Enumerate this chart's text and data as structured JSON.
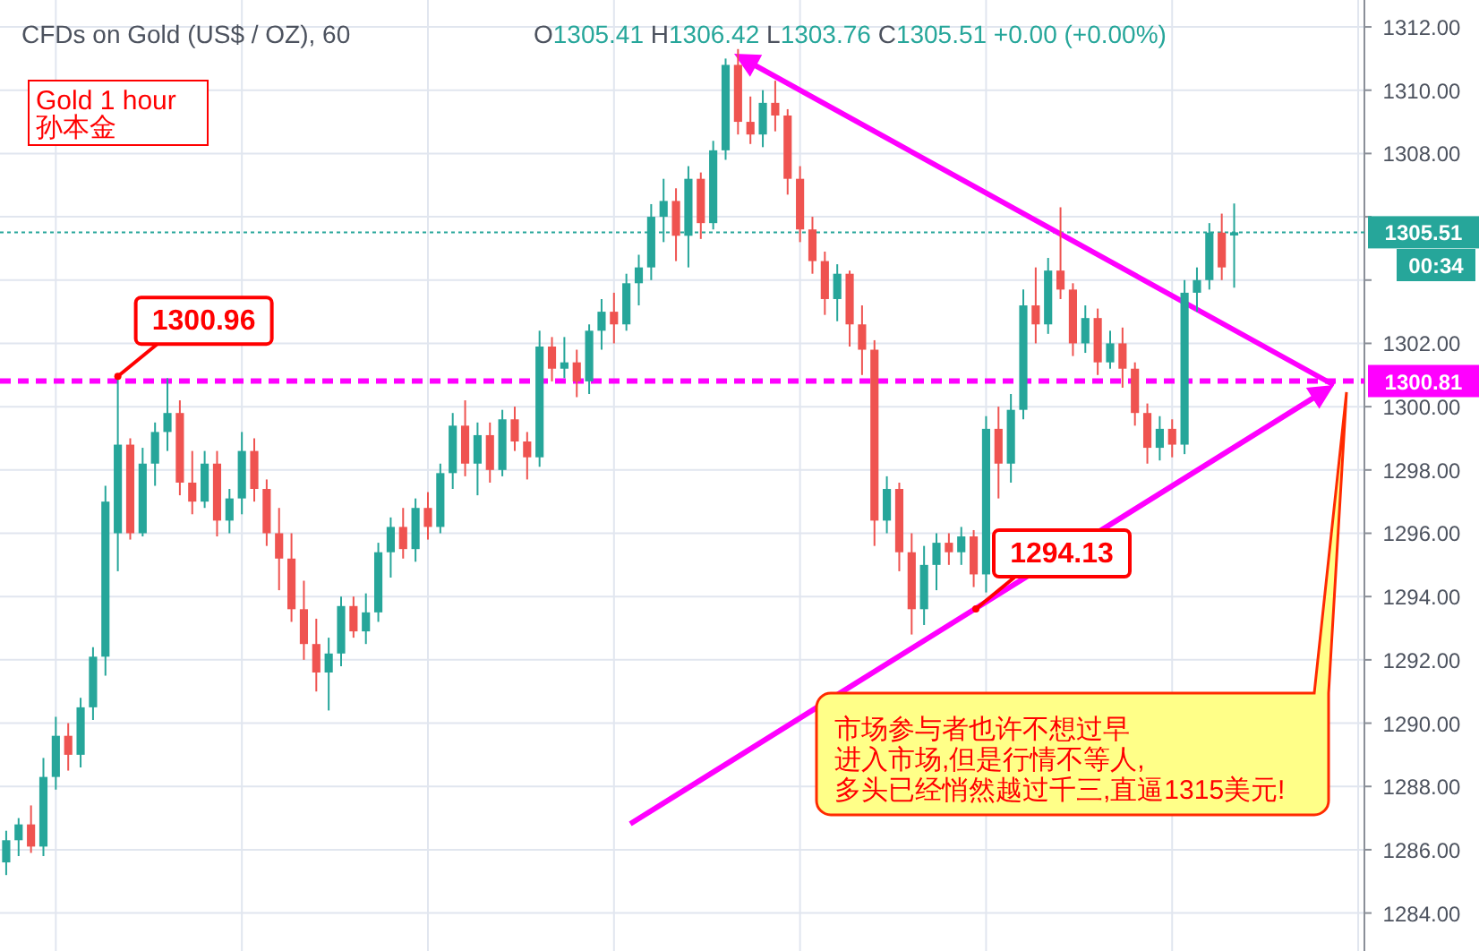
{
  "chart_data": {
    "type": "candlestick",
    "title": "CFDs on Gold (US$ / OZ), 60",
    "subtitle": "O1305.41 H1306.42 L1303.76 C1305.51 +0.00 (+0.00%)",
    "categories": [
      null,
      null,
      null,
      null,
      null,
      null,
      null,
      null,
      null,
      null,
      null,
      null,
      null,
      null,
      null,
      null,
      null,
      null,
      null,
      null,
      null,
      null,
      null,
      null,
      null,
      null,
      null,
      null,
      null,
      null,
      null,
      null,
      null,
      null,
      null,
      null,
      null,
      null,
      null,
      null,
      null,
      null,
      null,
      null,
      null,
      null,
      null,
      null,
      null,
      null,
      null,
      null,
      null,
      null,
      null,
      null,
      null,
      null,
      null,
      null,
      null,
      null,
      null,
      null,
      null,
      null,
      null,
      null,
      null,
      null,
      null,
      null,
      null,
      null,
      null,
      null,
      null,
      null,
      null,
      null,
      null,
      null,
      null,
      null,
      null,
      null,
      null,
      null,
      null,
      null,
      null,
      null,
      null,
      null,
      null,
      null,
      null,
      null,
      null,
      null,
      null,
      null,
      null,
      null,
      null,
      null,
      null,
      null,
      null,
      null
    ],
    "colors": [
      "#26a69a",
      "#26a69a",
      "#ef5350",
      "#26a69a",
      "#26a69a",
      "#ef5350",
      "#26a69a",
      "#26a69a",
      "#26a69a",
      "#26a69a",
      "#ef5350",
      "#26a69a",
      "#26a69a",
      "#26a69a",
      "#ef5350",
      "#ef5350",
      "#26a69a",
      "#ef5350",
      "#26a69a",
      "#26a69a",
      "#ef5350",
      "#ef5350",
      "#ef5350",
      "#ef5350",
      "#ef5350",
      "#ef5350",
      "#26a69a",
      "#26a69a",
      "#ef5350",
      "#26a69a",
      "#26a69a",
      "#26a69a",
      "#ef5350",
      "#26a69a",
      "#ef5350",
      "#26a69a",
      "#26a69a",
      "#ef5350",
      "#26a69a",
      "#ef5350",
      "#26a69a",
      "#ef5350",
      "#ef5350",
      "#26a69a",
      "#ef5350",
      "#26a69a",
      "#ef5350",
      "#26a69a",
      "#26a69a",
      "#ef5350",
      "#26a69a",
      "#26a69a",
      "#26a69a",
      "#26a69a",
      "#ef5350",
      "#26a69a",
      "#ef5350",
      "#26a69a",
      "#26a69a",
      "#ef5350",
      "#ef5350",
      "#26a69a",
      "#ef5350",
      "#ef5350",
      "#ef5350",
      "#ef5350",
      "#ef5350",
      "#26a69a",
      "#ef5350",
      "#ef5350",
      "#ef5350",
      "#26a69a",
      "#ef5350",
      "#ef5350",
      "#26a69a",
      "#26a69a",
      "#ef5350",
      "#26a69a",
      "#ef5350",
      "#26a69a",
      "#ef5350",
      "#26a69a",
      "#26a69a",
      "#ef5350",
      "#26a69a",
      "#ef5350",
      "#ef5350",
      "#26a69a",
      "#ef5350",
      "#26a69a",
      "#ef5350",
      "#ef5350",
      "#ef5350",
      "#26a69a",
      "#ef5350",
      "#26a69a",
      "#26a69a",
      "#26a69a",
      "#ef5350",
      "#26a69a",
      null,
      null,
      null,
      null,
      null,
      null,
      null,
      null,
      null,
      null
    ],
    "ohlc": [
      [
        1285.6,
        1286.6,
        1285.2,
        1286.3
      ],
      [
        1286.3,
        1287.0,
        1285.8,
        1286.8
      ],
      [
        1286.8,
        1287.4,
        1285.9,
        1286.1
      ],
      [
        1286.1,
        1288.9,
        1285.8,
        1288.3
      ],
      [
        1288.3,
        1290.2,
        1287.9,
        1289.6
      ],
      [
        1289.6,
        1290.0,
        1288.5,
        1289.0
      ],
      [
        1289.0,
        1290.8,
        1288.6,
        1290.5
      ],
      [
        1290.5,
        1292.4,
        1290.1,
        1292.1
      ],
      [
        1292.1,
        1297.5,
        1291.5,
        1297.0
      ],
      [
        1296.0,
        1300.96,
        1294.8,
        1298.8
      ],
      [
        1298.8,
        1299.0,
        1295.8,
        1296.0
      ],
      [
        1296.0,
        1298.7,
        1295.9,
        1298.2
      ],
      [
        1298.2,
        1299.5,
        1297.5,
        1299.2
      ],
      [
        1299.2,
        1300.9,
        1298.6,
        1299.8
      ],
      [
        1299.8,
        1300.2,
        1297.2,
        1297.6
      ],
      [
        1297.6,
        1298.6,
        1296.6,
        1297.0
      ],
      [
        1297.0,
        1298.6,
        1296.8,
        1298.2
      ],
      [
        1298.2,
        1298.6,
        1295.9,
        1296.4
      ],
      [
        1296.4,
        1297.4,
        1296.0,
        1297.1
      ],
      [
        1297.1,
        1299.2,
        1296.6,
        1298.6
      ],
      [
        1298.6,
        1299.0,
        1297.0,
        1297.4
      ],
      [
        1297.4,
        1297.7,
        1295.6,
        1296.0
      ],
      [
        1296.0,
        1296.8,
        1294.2,
        1295.2
      ],
      [
        1295.2,
        1296.0,
        1293.2,
        1293.6
      ],
      [
        1293.6,
        1294.5,
        1292.0,
        1292.5
      ],
      [
        1292.5,
        1293.3,
        1291.0,
        1291.6
      ],
      [
        1291.6,
        1292.7,
        1290.4,
        1292.2
      ],
      [
        1292.2,
        1294.0,
        1291.8,
        1293.7
      ],
      [
        1293.7,
        1294.0,
        1292.7,
        1292.9
      ],
      [
        1292.9,
        1294.1,
        1292.5,
        1293.5
      ],
      [
        1293.5,
        1295.7,
        1293.2,
        1295.4
      ],
      [
        1295.4,
        1296.5,
        1294.6,
        1296.2
      ],
      [
        1296.2,
        1296.8,
        1295.2,
        1295.5
      ],
      [
        1295.5,
        1297.1,
        1295.1,
        1296.8
      ],
      [
        1296.8,
        1297.3,
        1295.8,
        1296.2
      ],
      [
        1296.2,
        1298.2,
        1296.0,
        1297.9
      ],
      [
        1297.9,
        1299.8,
        1297.4,
        1299.4
      ],
      [
        1299.4,
        1300.2,
        1297.8,
        1298.2
      ],
      [
        1298.2,
        1299.5,
        1297.2,
        1299.1
      ],
      [
        1299.1,
        1299.5,
        1297.6,
        1298.0
      ],
      [
        1298.0,
        1299.9,
        1297.8,
        1299.6
      ],
      [
        1299.6,
        1300.0,
        1298.6,
        1298.9
      ],
      [
        1298.9,
        1299.2,
        1297.7,
        1298.4
      ],
      [
        1298.4,
        1302.4,
        1298.1,
        1301.9
      ],
      [
        1301.9,
        1302.2,
        1300.8,
        1301.2
      ],
      [
        1301.2,
        1302.2,
        1300.9,
        1301.4
      ],
      [
        1301.4,
        1301.8,
        1300.3,
        1300.8
      ],
      [
        1300.8,
        1302.6,
        1300.4,
        1302.4
      ],
      [
        1302.4,
        1303.4,
        1301.8,
        1303.0
      ],
      [
        1303.0,
        1303.6,
        1302.0,
        1302.6
      ],
      [
        1302.6,
        1304.2,
        1302.4,
        1303.9
      ],
      [
        1303.9,
        1304.8,
        1303.2,
        1304.4
      ],
      [
        1304.4,
        1306.4,
        1304.0,
        1306.0
      ],
      [
        1306.0,
        1307.2,
        1305.2,
        1306.5
      ],
      [
        1306.5,
        1306.9,
        1304.6,
        1305.4
      ],
      [
        1305.4,
        1307.6,
        1304.4,
        1307.2
      ],
      [
        1307.2,
        1307.4,
        1305.3,
        1305.8
      ],
      [
        1305.8,
        1308.4,
        1305.6,
        1308.1
      ],
      [
        1308.1,
        1311.0,
        1307.8,
        1310.8
      ],
      [
        1310.8,
        1311.3,
        1308.6,
        1309.0
      ],
      [
        1309.0,
        1309.8,
        1308.3,
        1308.6
      ],
      [
        1308.6,
        1310.0,
        1308.2,
        1309.6
      ],
      [
        1309.6,
        1310.3,
        1308.7,
        1309.2
      ],
      [
        1309.2,
        1309.4,
        1306.7,
        1307.2
      ],
      [
        1307.2,
        1307.6,
        1305.2,
        1305.6
      ],
      [
        1305.6,
        1306.0,
        1304.2,
        1304.6
      ],
      [
        1304.6,
        1304.9,
        1302.9,
        1303.4
      ],
      [
        1303.4,
        1304.5,
        1302.7,
        1304.2
      ],
      [
        1304.2,
        1304.3,
        1301.9,
        1302.6
      ],
      [
        1302.6,
        1303.2,
        1301.0,
        1301.8
      ],
      [
        1301.8,
        1302.1,
        1295.6,
        1296.4
      ],
      [
        1296.4,
        1297.8,
        1296.0,
        1297.4
      ],
      [
        1297.4,
        1297.6,
        1294.8,
        1295.4
      ],
      [
        1295.4,
        1296.0,
        1292.8,
        1293.6
      ],
      [
        1293.6,
        1295.6,
        1293.1,
        1295.0
      ],
      [
        1295.0,
        1296.0,
        1294.2,
        1295.7
      ],
      [
        1295.7,
        1296.0,
        1295.0,
        1295.4
      ],
      [
        1295.4,
        1296.2,
        1295.0,
        1295.9
      ],
      [
        1295.9,
        1296.1,
        1294.3,
        1294.7
      ],
      [
        1294.7,
        1299.7,
        1294.13,
        1299.3
      ],
      [
        1299.3,
        1300.0,
        1297.1,
        1298.2
      ],
      [
        1298.2,
        1300.4,
        1297.6,
        1299.9
      ],
      [
        1299.9,
        1303.7,
        1299.6,
        1303.2
      ],
      [
        1303.2,
        1304.4,
        1302.0,
        1302.6
      ],
      [
        1302.6,
        1304.7,
        1302.3,
        1304.3
      ],
      [
        1304.3,
        1306.3,
        1303.4,
        1303.7
      ],
      [
        1303.7,
        1303.9,
        1301.6,
        1302.0
      ],
      [
        1302.0,
        1303.2,
        1301.7,
        1302.8
      ],
      [
        1302.8,
        1303.1,
        1301.0,
        1301.4
      ],
      [
        1301.4,
        1302.4,
        1301.2,
        1302.0
      ],
      [
        1302.0,
        1302.5,
        1300.6,
        1301.2
      ],
      [
        1301.2,
        1301.4,
        1299.4,
        1299.8
      ],
      [
        1299.8,
        1300.1,
        1298.2,
        1298.7
      ],
      [
        1298.7,
        1299.7,
        1298.3,
        1299.3
      ],
      [
        1299.3,
        1299.6,
        1298.4,
        1298.8
      ],
      [
        1298.8,
        1304.0,
        1298.5,
        1303.6
      ],
      [
        1303.6,
        1304.4,
        1303.0,
        1304.0
      ],
      [
        1304.0,
        1305.8,
        1303.7,
        1305.5
      ],
      [
        1305.5,
        1306.1,
        1304.0,
        1304.4
      ],
      [
        1305.41,
        1306.42,
        1303.76,
        1305.51
      ],
      null,
      null,
      null,
      null,
      null,
      null,
      null,
      null,
      null,
      null
    ],
    "ref_lines": [
      {
        "axis": "y",
        "value": 1300.81,
        "label": "1300.81",
        "color": "#ff00ff",
        "line_style": "dashed"
      },
      {
        "axis": "y",
        "value": 1305.51,
        "label": "1305.51",
        "color": "#26a69a",
        "line_style": "dotted"
      }
    ],
    "ylim": [
      1282.8,
      1312.85
    ],
    "yticks": [
      {
        "value": 1284,
        "label": "1284.00"
      },
      {
        "value": 1286,
        "label": "1286.00"
      },
      {
        "value": 1288,
        "label": "1288.00"
      },
      {
        "value": 1290,
        "label": "1290.00"
      },
      {
        "value": 1292,
        "label": "1292.00"
      },
      {
        "value": 1294,
        "label": "1294.00"
      },
      {
        "value": 1296,
        "label": "1296.00"
      },
      {
        "value": 1298,
        "label": "1298.00"
      },
      {
        "value": 1300,
        "label": "1300.00"
      },
      {
        "value": 1302,
        "label": "1302.00"
      },
      {
        "value": 1304,
        "label": null
      },
      {
        "value": 1306,
        "label": null
      },
      {
        "value": 1308,
        "label": "1308.00"
      },
      {
        "value": 1310,
        "label": "1310.00"
      },
      {
        "value": 1312,
        "label": "1312.00"
      }
    ],
    "tick_labels": "y",
    "grid": true,
    "annotations": [
      {
        "text": "1300.96",
        "y": 1300.96
      },
      "1294.13",
      "Gold 1 hour\n孙本金",
      "00:34",
      "市场参与者也许不想过早",
      "进入市场,但是行情不等人,",
      "多头已经悄然越过千三,直逼1315美元!"
    ]
  }
}
